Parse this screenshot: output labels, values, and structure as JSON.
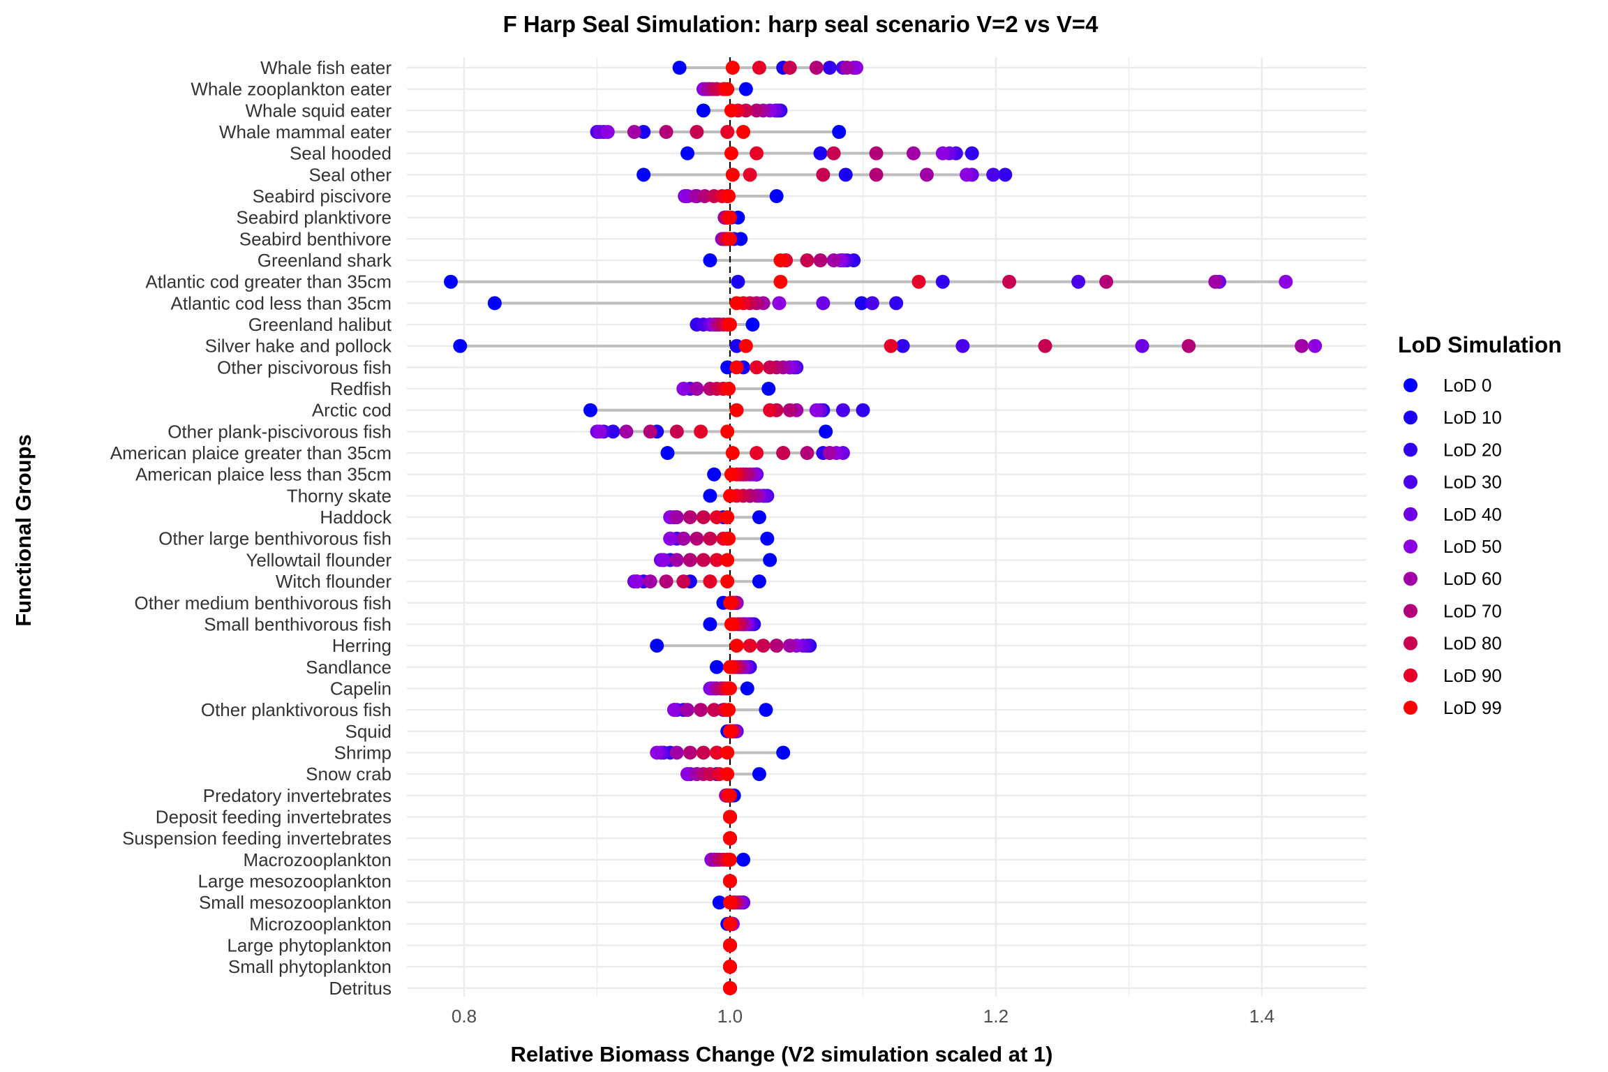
{
  "chart_data": {
    "type": "scatter",
    "title": "F Harp Seal Simulation: harp seal scenario V=2 vs V=4",
    "xlabel": "Relative Biomass Change (V2 simulation scaled at 1)",
    "ylabel": "Functional Groups",
    "xlim": [
      0.77,
      1.47
    ],
    "xticks": [
      0.8,
      1.0,
      1.2,
      1.4
    ],
    "xtick_labels": [
      "0.8",
      "1.0",
      "1.2",
      "1.4"
    ],
    "reference_line": 1.0,
    "legend": {
      "title": "LoD Simulation",
      "position": "right"
    },
    "series": [
      {
        "name": "LoD 0",
        "color": "#0000FF"
      },
      {
        "name": "LoD 10",
        "color": "#1900F5"
      },
      {
        "name": "LoD 20",
        "color": "#3200F0"
      },
      {
        "name": "LoD 30",
        "color": "#4B00EB"
      },
      {
        "name": "LoD 40",
        "color": "#6E00E6"
      },
      {
        "name": "LoD 50",
        "color": "#8C00E1"
      },
      {
        "name": "LoD 60",
        "color": "#A000A5"
      },
      {
        "name": "LoD 70",
        "color": "#B40078"
      },
      {
        "name": "LoD 80",
        "color": "#C80050"
      },
      {
        "name": "LoD 90",
        "color": "#E60028"
      },
      {
        "name": "LoD 99",
        "color": "#FF0000"
      }
    ],
    "groups": [
      {
        "name": "Whale fish eater",
        "values": [
          0.962,
          1.04,
          1.075,
          1.085,
          1.093,
          1.095,
          1.088,
          1.065,
          1.045,
          1.022,
          1.002
        ]
      },
      {
        "name": "Whale zooplankton eater",
        "values": [
          1.012,
          0.996,
          0.99,
          0.985,
          0.981,
          0.98,
          0.983,
          0.987,
          0.99,
          0.995,
          0.998
        ]
      },
      {
        "name": "Whale squid eater",
        "values": [
          0.98,
          1.035,
          1.038,
          1.036,
          1.034,
          1.03,
          1.025,
          1.02,
          1.012,
          1.006,
          1.001
        ]
      },
      {
        "name": "Whale mammal eater",
        "values": [
          1.082,
          0.935,
          0.905,
          0.9,
          0.902,
          0.908,
          0.928,
          0.952,
          0.975,
          0.998,
          1.01
        ]
      },
      {
        "name": "Seal hooded",
        "values": [
          0.968,
          1.068,
          1.182,
          1.17,
          1.165,
          1.16,
          1.138,
          1.11,
          1.078,
          1.02,
          1.001
        ]
      },
      {
        "name": "Seal other",
        "values": [
          0.935,
          1.087,
          1.207,
          1.198,
          1.182,
          1.178,
          1.148,
          1.11,
          1.07,
          1.015,
          1.002
        ]
      },
      {
        "name": "Seabird piscivore",
        "values": [
          1.035,
          0.998,
          0.975,
          0.968,
          0.966,
          0.967,
          0.974,
          0.981,
          0.988,
          0.994,
          0.999
        ]
      },
      {
        "name": "Seabird planktivore",
        "values": [
          1.006,
          1.001,
          0.998,
          0.997,
          0.996,
          0.996,
          0.996,
          0.997,
          0.998,
          0.999,
          1.0
        ]
      },
      {
        "name": "Seabird benthivore",
        "values": [
          1.008,
          1.003,
          0.998,
          0.996,
          0.995,
          0.994,
          0.995,
          0.996,
          0.997,
          0.999,
          1.0
        ]
      },
      {
        "name": "Greenland shark",
        "values": [
          0.985,
          1.042,
          1.093,
          1.088,
          1.085,
          1.083,
          1.078,
          1.068,
          1.058,
          1.042,
          1.038
        ]
      },
      {
        "name": "Atlantic cod greater than 35cm",
        "values": [
          0.79,
          1.006,
          1.16,
          1.262,
          1.368,
          1.418,
          1.365,
          1.283,
          1.21,
          1.142,
          1.038
        ]
      },
      {
        "name": "Atlantic cod less than 35cm",
        "values": [
          0.823,
          1.099,
          1.125,
          1.107,
          1.07,
          1.037,
          1.025,
          1.02,
          1.015,
          1.01,
          1.005
        ]
      },
      {
        "name": "Greenland halibut",
        "values": [
          1.017,
          0.99,
          0.975,
          0.98,
          0.985,
          0.988,
          0.99,
          0.992,
          0.995,
          0.998,
          1.0
        ]
      },
      {
        "name": "Silver hake and pollock",
        "values": [
          0.797,
          1.005,
          1.13,
          1.175,
          1.31,
          1.44,
          1.43,
          1.345,
          1.237,
          1.121,
          1.012
        ]
      },
      {
        "name": "Other piscivorous fish",
        "values": [
          0.998,
          1.01,
          1.045,
          1.05,
          1.048,
          1.045,
          1.04,
          1.035,
          1.03,
          1.02,
          1.005
        ]
      },
      {
        "name": "Redfish",
        "values": [
          1.029,
          0.995,
          0.975,
          0.97,
          0.965,
          0.965,
          0.975,
          0.985,
          0.99,
          0.995,
          0.999
        ]
      },
      {
        "name": "Arctic cod",
        "values": [
          0.895,
          1.07,
          1.1,
          1.085,
          1.068,
          1.065,
          1.05,
          1.045,
          1.035,
          1.03,
          1.005
        ]
      },
      {
        "name": "Other plank-piscivorous fish",
        "values": [
          1.072,
          0.945,
          0.912,
          0.905,
          0.9,
          0.902,
          0.922,
          0.94,
          0.96,
          0.978,
          0.998
        ]
      },
      {
        "name": "American plaice greater than 35cm",
        "values": [
          0.953,
          1.04,
          1.07,
          1.075,
          1.085,
          1.08,
          1.075,
          1.058,
          1.04,
          1.02,
          1.002
        ]
      },
      {
        "name": "American plaice less than 35cm",
        "values": [
          0.988,
          1.01,
          1.02,
          1.02,
          1.02,
          1.018,
          1.015,
          1.012,
          1.008,
          1.005,
          1.001
        ]
      },
      {
        "name": "Thorny skate",
        "values": [
          0.985,
          1.015,
          1.025,
          1.028,
          1.026,
          1.022,
          1.02,
          1.015,
          1.01,
          1.005,
          1.0
        ]
      },
      {
        "name": "Haddock",
        "values": [
          1.022,
          0.995,
          0.96,
          0.958,
          0.955,
          0.955,
          0.96,
          0.97,
          0.98,
          0.99,
          0.998
        ]
      },
      {
        "name": "Other large benthivorous fish",
        "values": [
          1.028,
          0.998,
          0.965,
          0.96,
          0.955,
          0.955,
          0.965,
          0.975,
          0.985,
          0.995,
          0.999
        ]
      },
      {
        "name": "Yellowtail flounder",
        "values": [
          1.03,
          0.97,
          0.955,
          0.95,
          0.948,
          0.95,
          0.96,
          0.97,
          0.98,
          0.99,
          0.998
        ]
      },
      {
        "name": "Witch flounder",
        "values": [
          1.022,
          0.97,
          0.935,
          0.93,
          0.928,
          0.93,
          0.94,
          0.952,
          0.965,
          0.985,
          0.998
        ]
      },
      {
        "name": "Other medium benthivorous fish",
        "values": [
          0.995,
          1.002,
          1.005,
          1.005,
          1.005,
          1.005,
          1.004,
          1.003,
          1.002,
          1.001,
          1.0
        ]
      },
      {
        "name": "Small benthivorous fish",
        "values": [
          0.985,
          1.01,
          1.018,
          1.016,
          1.014,
          1.012,
          1.01,
          1.008,
          1.006,
          1.003,
          1.001
        ]
      },
      {
        "name": "Herring",
        "values": [
          0.945,
          1.035,
          1.06,
          1.058,
          1.055,
          1.05,
          1.045,
          1.035,
          1.025,
          1.015,
          1.005
        ]
      },
      {
        "name": "Sandlance",
        "values": [
          0.99,
          1.008,
          1.015,
          1.014,
          1.012,
          1.01,
          1.008,
          1.006,
          1.004,
          1.002,
          1.0
        ]
      },
      {
        "name": "Capelin",
        "values": [
          1.013,
          0.994,
          0.99,
          0.988,
          0.985,
          0.986,
          0.99,
          0.993,
          0.996,
          0.998,
          1.0
        ]
      },
      {
        "name": "Other planktivorous fish",
        "values": [
          1.027,
          0.995,
          0.965,
          0.96,
          0.958,
          0.958,
          0.968,
          0.978,
          0.988,
          0.996,
          0.999
        ]
      },
      {
        "name": "Squid",
        "values": [
          0.998,
          1.003,
          1.005,
          1.005,
          1.004,
          1.004,
          1.003,
          1.002,
          1.002,
          1.001,
          1.0
        ]
      },
      {
        "name": "Shrimp",
        "values": [
          1.04,
          0.99,
          0.955,
          0.95,
          0.948,
          0.945,
          0.96,
          0.97,
          0.98,
          0.99,
          0.998
        ]
      },
      {
        "name": "Snow crab",
        "values": [
          1.022,
          0.99,
          0.975,
          0.97,
          0.968,
          0.968,
          0.975,
          0.98,
          0.985,
          0.992,
          0.998
        ]
      },
      {
        "name": "Predatory invertebrates",
        "values": [
          1.003,
          1.001,
          0.999,
          0.998,
          0.997,
          0.997,
          0.997,
          0.998,
          0.998,
          0.999,
          1.0
        ]
      },
      {
        "name": "Deposit feeding invertebrates",
        "values": [
          1.0,
          1.0,
          1.0,
          1.0,
          1.0,
          1.0,
          1.0,
          1.0,
          1.0,
          1.0,
          1.0
        ]
      },
      {
        "name": "Suspension feeding invertebrates",
        "values": [
          1.0,
          1.0,
          1.0,
          1.0,
          1.0,
          1.0,
          1.0,
          1.0,
          1.0,
          1.0,
          1.0
        ]
      },
      {
        "name": "Macrozooplankton",
        "values": [
          1.01,
          0.998,
          0.99,
          0.988,
          0.986,
          0.986,
          0.988,
          0.992,
          0.995,
          0.998,
          1.0
        ]
      },
      {
        "name": "Large mesozooplankton",
        "values": [
          1.0,
          1.0,
          1.0,
          1.0,
          1.0,
          1.0,
          1.0,
          1.0,
          1.0,
          1.0,
          1.0
        ]
      },
      {
        "name": "Small mesozooplankton",
        "values": [
          0.992,
          1.003,
          1.008,
          1.01,
          1.01,
          1.008,
          1.006,
          1.004,
          1.003,
          1.001,
          1.0
        ]
      },
      {
        "name": "Microzooplankton",
        "values": [
          0.998,
          1.001,
          1.002,
          1.002,
          1.002,
          1.002,
          1.001,
          1.001,
          1.0,
          1.0,
          1.0
        ]
      },
      {
        "name": "Large phytoplankton",
        "values": [
          1.0,
          1.0,
          1.0,
          1.0,
          1.0,
          1.0,
          1.0,
          1.0,
          1.0,
          1.0,
          1.0
        ]
      },
      {
        "name": "Small phytoplankton",
        "values": [
          1.0,
          1.0,
          1.0,
          1.0,
          1.0,
          1.0,
          1.0,
          1.0,
          1.0,
          1.0,
          1.0
        ]
      },
      {
        "name": "Detritus",
        "values": [
          1.0,
          1.0,
          1.0,
          1.0,
          1.0,
          1.0,
          1.0,
          1.0,
          1.0,
          1.0,
          1.0
        ]
      }
    ]
  }
}
